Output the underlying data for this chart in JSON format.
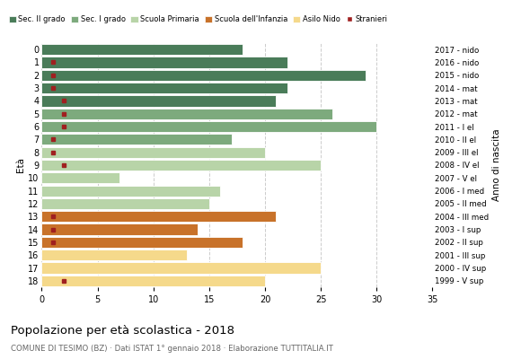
{
  "ages": [
    18,
    17,
    16,
    15,
    14,
    13,
    12,
    11,
    10,
    9,
    8,
    7,
    6,
    5,
    4,
    3,
    2,
    1,
    0
  ],
  "anno_nascita": [
    "1999 - V sup",
    "2000 - IV sup",
    "2001 - III sup",
    "2002 - II sup",
    "2003 - I sup",
    "2004 - III med",
    "2005 - II med",
    "2006 - I med",
    "2007 - V el",
    "2008 - IV el",
    "2009 - III el",
    "2010 - II el",
    "2011 - I el",
    "2012 - mat",
    "2013 - mat",
    "2014 - mat",
    "2015 - nido",
    "2016 - nido",
    "2017 - nido"
  ],
  "bar_values": [
    18,
    22,
    29,
    22,
    21,
    26,
    30,
    17,
    20,
    25,
    7,
    16,
    15,
    21,
    14,
    18,
    13,
    25,
    20
  ],
  "stranieri_x": [
    0,
    1,
    1,
    1,
    2,
    2,
    2,
    1,
    1,
    2,
    0,
    0,
    0,
    1,
    1,
    1,
    0,
    0,
    2
  ],
  "bar_colors": [
    "#4a7c59",
    "#4a7c59",
    "#4a7c59",
    "#4a7c59",
    "#4a7c59",
    "#7daa7d",
    "#7daa7d",
    "#7daa7d",
    "#b8d4a8",
    "#b8d4a8",
    "#b8d4a8",
    "#b8d4a8",
    "#b8d4a8",
    "#c8722a",
    "#c8722a",
    "#c8722a",
    "#f5d98b",
    "#f5d98b",
    "#f5d98b"
  ],
  "legend_labels": [
    "Sec. II grado",
    "Sec. I grado",
    "Scuola Primaria",
    "Scuola dell'Infanzia",
    "Asilo Nido",
    "Stranieri"
  ],
  "legend_colors": [
    "#4a7c59",
    "#7daa7d",
    "#b8d4a8",
    "#c8722a",
    "#f5d98b",
    "#a02020"
  ],
  "title": "Popolazione per età scolastica - 2018",
  "subtitle": "COMUNE DI TESIMO (BZ) · Dati ISTAT 1° gennaio 2018 · Elaborazione TUTTITALIA.IT",
  "ylabel_left": "Età",
  "ylabel_right": "Anno di nascita",
  "stranieri_color": "#a02020",
  "xlim": [
    0,
    35
  ],
  "background_color": "#ffffff",
  "grid_color": "#cccccc"
}
